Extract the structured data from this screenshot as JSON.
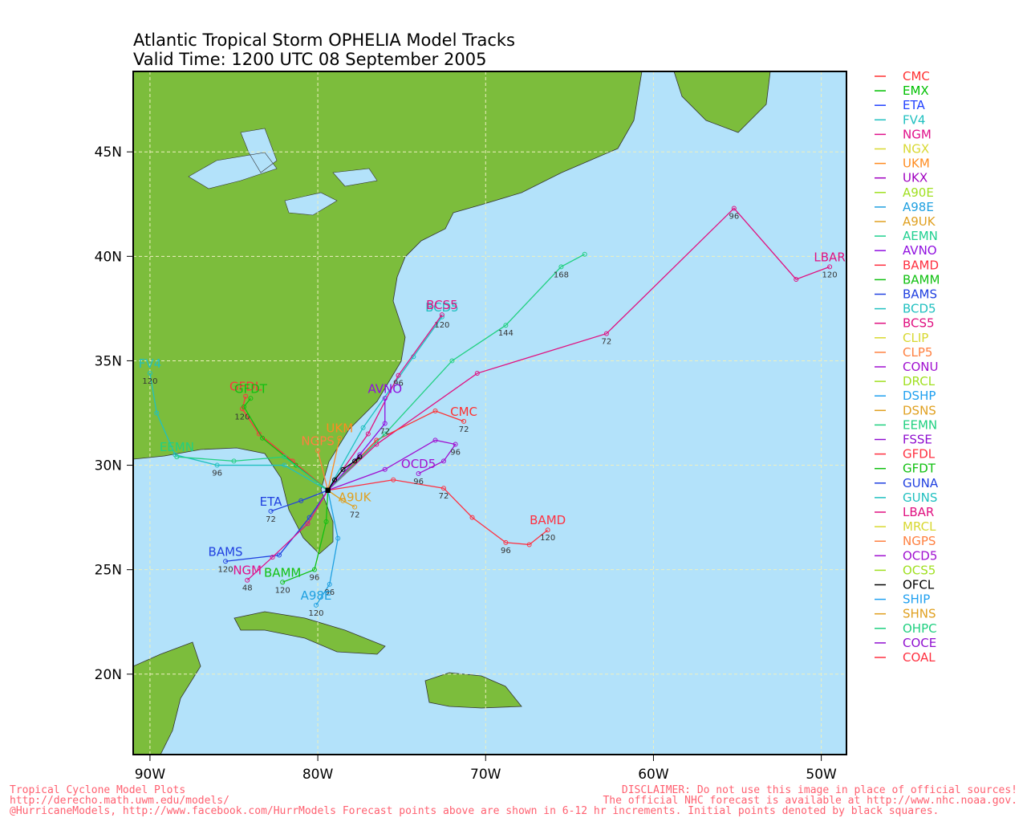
{
  "header": {
    "title": "Atlantic Tropical Storm OPHELIA Model Tracks",
    "subtitle": "Valid Time: 1200 UTC 08 September 2005"
  },
  "map": {
    "xlim": [
      -91,
      -48.5
    ],
    "ylim": [
      16.15,
      48.85
    ],
    "xticks": [
      {
        "value": -90,
        "label": "90W"
      },
      {
        "value": -80,
        "label": "80W"
      },
      {
        "value": -70,
        "label": "70W"
      },
      {
        "value": -60,
        "label": "60W"
      },
      {
        "value": -50,
        "label": "50W"
      }
    ],
    "yticks": [
      {
        "value": 20,
        "label": "20N"
      },
      {
        "value": 25,
        "label": "25N"
      },
      {
        "value": 30,
        "label": "30N"
      },
      {
        "value": 35,
        "label": "35N"
      },
      {
        "value": 40,
        "label": "40N"
      },
      {
        "value": 45,
        "label": "45N"
      }
    ],
    "grid": true,
    "tracks": [
      {
        "label": "LBAR",
        "color": "#e01080",
        "lon": [
          -79.4,
          -76.5,
          -70.5,
          -62.8,
          -55.2,
          -51.5,
          -49.5
        ],
        "lat": [
          28.8,
          31.0,
          34.4,
          36.3,
          42.3,
          38.9,
          39.5
        ],
        "hours": [
          null,
          null,
          null,
          72,
          96,
          null,
          120
        ]
      },
      {
        "label": "BAMD",
        "color": "#ff3040",
        "lon": [
          -79.4,
          -75.5,
          -72.5,
          -70.8,
          -68.8,
          -67.4,
          -66.3
        ],
        "lat": [
          28.8,
          29.3,
          28.9,
          27.5,
          26.3,
          26.2,
          26.9
        ],
        "hours": [
          null,
          null,
          72,
          null,
          96,
          null,
          120
        ]
      },
      {
        "label": "CMC",
        "color": "#ff3030",
        "lon": [
          -79.4,
          -76.5,
          -73.0,
          -71.3
        ],
        "lat": [
          28.8,
          31.2,
          32.6,
          32.1
        ],
        "hours": [
          null,
          null,
          null,
          72
        ]
      },
      {
        "label": "BCD5",
        "color": "#20c0c0",
        "lon": [
          -79.4,
          -77.3,
          -74.3,
          -72.6
        ],
        "lat": [
          28.8,
          31.8,
          35.2,
          37.1
        ],
        "hours": [
          null,
          null,
          null,
          120
        ]
      },
      {
        "label": "BCS5",
        "color": "#e01080",
        "lon": [
          -79.4,
          -77.0,
          -75.2,
          -72.6
        ],
        "lat": [
          28.8,
          31.5,
          34.3,
          37.2
        ],
        "hours": [
          null,
          null,
          96,
          null
        ]
      },
      {
        "color": "#20d080",
        "lon": [
          -79.4,
          -76.0,
          -72.0,
          -68.8,
          -65.5,
          -64.1
        ],
        "lat": [
          28.8,
          31.5,
          35.0,
          36.7,
          39.5,
          40.1
        ],
        "hours": [
          null,
          null,
          null,
          144,
          168,
          null
        ]
      },
      {
        "label": "AVNO",
        "color": "#9010e0",
        "lon": [
          -79.4,
          -77.5,
          -76.0,
          -76.0
        ],
        "lat": [
          28.8,
          30.5,
          32.0,
          33.2
        ],
        "hours": [
          null,
          null,
          72,
          null
        ]
      },
      {
        "label": "FV4",
        "color": "#20c0c0",
        "lon": [
          -79.4,
          -82.0,
          -86.0,
          -88.5,
          -89.6,
          -90.0
        ],
        "lat": [
          28.8,
          30.0,
          30.0,
          30.5,
          32.5,
          34.4
        ],
        "hours": [
          null,
          null,
          96,
          null,
          null,
          120
        ]
      },
      {
        "label": "GFDL",
        "color": "#ff3040",
        "lon": [
          -79.4,
          -81.5,
          -83.5,
          -84.5,
          -84.3
        ],
        "lat": [
          28.8,
          30.2,
          31.5,
          32.7,
          33.3
        ],
        "hours": [
          null,
          null,
          null,
          120,
          null
        ]
      },
      {
        "label": "GFDT",
        "color": "#10c010",
        "lon": [
          -79.4,
          -81.3,
          -83.3,
          -84.4,
          -84.0
        ],
        "lat": [
          28.8,
          30.0,
          31.3,
          32.8,
          33.2
        ],
        "hours": [
          null,
          null,
          null,
          null,
          null
        ]
      },
      {
        "label": "EEMN",
        "color": "#20d080",
        "lon": [
          -79.4,
          -82.0,
          -85.0,
          -88.4
        ],
        "lat": [
          28.8,
          30.4,
          30.2,
          30.4
        ],
        "hours": [
          null,
          null,
          null,
          null
        ]
      },
      {
        "label": "BAMS",
        "color": "#2040e0",
        "lon": [
          -79.4,
          -80.5,
          -82.3,
          -85.5
        ],
        "lat": [
          28.8,
          27.5,
          25.7,
          25.4
        ],
        "hours": [
          null,
          null,
          null,
          120
        ]
      },
      {
        "label": "NGM",
        "color": "#e0108a",
        "lon": [
          -79.4,
          -80.6,
          -82.7,
          -84.2
        ],
        "lat": [
          28.8,
          27.2,
          25.6,
          24.5
        ],
        "hours": [
          null,
          null,
          null,
          48
        ]
      },
      {
        "label": "BAMM",
        "color": "#10c010",
        "lon": [
          -79.4,
          -79.5,
          -80.2,
          -82.1
        ],
        "lat": [
          28.8,
          27.3,
          25.0,
          24.4
        ],
        "hours": [
          null,
          null,
          96,
          120
        ]
      },
      {
        "label": "A98E",
        "color": "#20a0e0",
        "lon": [
          -79.4,
          -78.8,
          -79.3,
          -80.1
        ],
        "lat": [
          28.8,
          26.5,
          24.3,
          23.3
        ],
        "hours": [
          null,
          null,
          96,
          120
        ]
      },
      {
        "label": "ETA",
        "color": "#2040e0",
        "lon": [
          -79.4,
          -81.0,
          -82.8
        ],
        "lat": [
          28.8,
          28.3,
          27.8
        ],
        "hours": [
          null,
          null,
          72
        ]
      },
      {
        "label": "UKM",
        "color": "#ff8c20",
        "lon": [
          -79.4,
          -78.7
        ],
        "lat": [
          28.8,
          31.3
        ],
        "hours": [
          null,
          null
        ]
      },
      {
        "label": "NGPS",
        "color": "#ff8040",
        "lon": [
          -79.4,
          -80.0
        ],
        "lat": [
          28.8,
          30.7
        ],
        "hours": [
          null,
          null
        ]
      },
      {
        "label": "OCD5",
        "color": "#a010d0",
        "lon": [
          -79.4,
          -76.0,
          -73.0,
          -71.8,
          -72.5,
          -74.0
        ],
        "lat": [
          28.8,
          29.8,
          31.2,
          31.0,
          30.2,
          29.6
        ],
        "hours": [
          null,
          null,
          null,
          96,
          null,
          96
        ]
      },
      {
        "label": "A9UK",
        "color": "#e0a020",
        "lon": [
          -79.4,
          -78.5,
          -77.8
        ],
        "lat": [
          28.8,
          28.3,
          28.0
        ],
        "hours": [
          null,
          null,
          72
        ]
      },
      {
        "color": "#000000",
        "lon": [
          -79.4,
          -79.0,
          -78.5,
          -77.8,
          -77.5
        ],
        "lat": [
          28.8,
          29.3,
          29.8,
          30.2,
          30.4
        ],
        "hours": [
          null,
          null,
          null,
          null,
          null
        ]
      }
    ]
  },
  "legend": [
    {
      "name": "CMC",
      "color": "#ff3030"
    },
    {
      "name": "EMX",
      "color": "#00c000"
    },
    {
      "name": "ETA",
      "color": "#2040ff"
    },
    {
      "name": "FV4",
      "color": "#20c0c0"
    },
    {
      "name": "NGM",
      "color": "#e0108a"
    },
    {
      "name": "NGX",
      "color": "#d8d830"
    },
    {
      "name": "UKM",
      "color": "#ff8c20"
    },
    {
      "name": "UKX",
      "color": "#a000c0"
    },
    {
      "name": "A90E",
      "color": "#a0e020"
    },
    {
      "name": "A98E",
      "color": "#20a0e0"
    },
    {
      "name": "A9UK",
      "color": "#e0a020"
    },
    {
      "name": "AEMN",
      "color": "#20d090"
    },
    {
      "name": "AVNO",
      "color": "#9010e0"
    },
    {
      "name": "BAMD",
      "color": "#ff3040"
    },
    {
      "name": "BAMM",
      "color": "#10c010"
    },
    {
      "name": "BAMS",
      "color": "#2040e0"
    },
    {
      "name": "BCD5",
      "color": "#20c0c0"
    },
    {
      "name": "BCS5",
      "color": "#e01080"
    },
    {
      "name": "CLIP",
      "color": "#d8d830"
    },
    {
      "name": "CLP5",
      "color": "#ff8040"
    },
    {
      "name": "CONU",
      "color": "#a010d0"
    },
    {
      "name": "DRCL",
      "color": "#a0e020"
    },
    {
      "name": "DSHP",
      "color": "#20a0f0"
    },
    {
      "name": "DSNS",
      "color": "#e0a020"
    },
    {
      "name": "EEMN",
      "color": "#20d080"
    },
    {
      "name": "FSSE",
      "color": "#9010d0"
    },
    {
      "name": "GFDL",
      "color": "#ff3040"
    },
    {
      "name": "GFDT",
      "color": "#10c010"
    },
    {
      "name": "GUNA",
      "color": "#2040e0"
    },
    {
      "name": "GUNS",
      "color": "#20c0c0"
    },
    {
      "name": "LBAR",
      "color": "#e01080"
    },
    {
      "name": "MRCL",
      "color": "#d8d830"
    },
    {
      "name": "NGPS",
      "color": "#ff8040"
    },
    {
      "name": "OCD5",
      "color": "#a010d0"
    },
    {
      "name": "OCS5",
      "color": "#a0e020"
    },
    {
      "name": "OFCL",
      "color": "#000000"
    },
    {
      "name": "SHIP",
      "color": "#20a0f0"
    },
    {
      "name": "SHNS",
      "color": "#e0a020"
    },
    {
      "name": "OHPC",
      "color": "#20d080"
    },
    {
      "name": "COCE",
      "color": "#9010d0"
    },
    {
      "name": "COAL",
      "color": "#ff3040"
    }
  ],
  "footer": {
    "left": [
      "Tropical Cyclone Model Plots",
      "http://derecho.math.uwm.edu/models/",
      "@HurricaneModels, http://www.facebook.com/HurrModels  Forecast points above are shown in 6-12 hr increments. Initial points denoted by black squares."
    ],
    "right": [
      "DISCLAIMER: Do not use this image in place of official sources!",
      "The official NHC forecast is available at http://www.nhc.noaa.gov."
    ]
  }
}
